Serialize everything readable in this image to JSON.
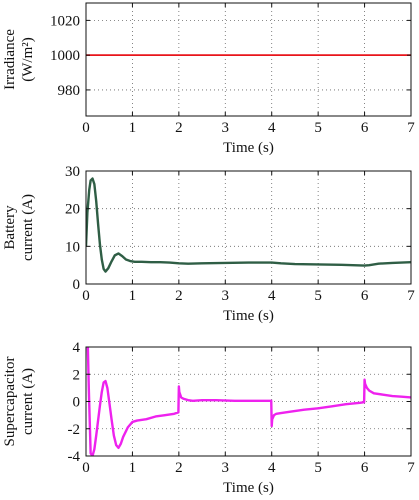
{
  "chart_data": [
    {
      "type": "line",
      "ylabel": "Irradiance (W/m²)",
      "ylabel_lines": [
        "Irradiance",
        "(W/m²)"
      ],
      "xlabel": "Time (s)",
      "xlim": [
        0,
        7
      ],
      "ylim": [
        965,
        1030
      ],
      "xticks": [
        0,
        1,
        2,
        3,
        4,
        5,
        6,
        7
      ],
      "yticks": [
        980,
        1000,
        1020
      ],
      "grid": true,
      "series": [
        {
          "color": "#e8141a",
          "x": [
            0,
            7
          ],
          "y": [
            1000,
            1000
          ]
        }
      ]
    },
    {
      "type": "line",
      "ylabel": "Battery current (A)",
      "ylabel_lines": [
        "Battery",
        "current (A)"
      ],
      "xlabel": "Time (s)",
      "xlim": [
        0,
        7
      ],
      "ylim": [
        0,
        30
      ],
      "xticks": [
        0,
        1,
        2,
        3,
        4,
        5,
        6,
        7
      ],
      "yticks": [
        0,
        10,
        20,
        30
      ],
      "grid": true,
      "series": [
        {
          "color": "#2f5e45",
          "x": [
            0,
            0.03,
            0.07,
            0.1,
            0.14,
            0.18,
            0.22,
            0.26,
            0.3,
            0.34,
            0.38,
            0.42,
            0.48,
            0.55,
            0.62,
            0.7,
            0.78,
            0.86,
            0.95,
            1.05,
            1.2,
            1.4,
            1.6,
            1.8,
            2.0,
            2.2,
            2.5,
            3.0,
            3.5,
            4.0,
            4.2,
            4.5,
            5.0,
            5.5,
            6.0,
            6.1,
            6.3,
            6.6,
            7.0
          ],
          "y": [
            10,
            19,
            25,
            27.5,
            28,
            26.5,
            22,
            16,
            10.5,
            6.5,
            4,
            3.3,
            4.2,
            6,
            7.6,
            8.1,
            7.4,
            6.5,
            6.1,
            5.9,
            5.9,
            5.8,
            5.8,
            5.7,
            5.5,
            5.4,
            5.5,
            5.6,
            5.7,
            5.7,
            5.5,
            5.3,
            5.2,
            5.1,
            4.9,
            5.0,
            5.4,
            5.6,
            5.8
          ]
        }
      ]
    },
    {
      "type": "line",
      "ylabel": "Supercapacitor current (A)",
      "ylabel_lines": [
        "Supercapacitor",
        "current (A)"
      ],
      "xlabel": "Time (s)",
      "xlim": [
        0,
        7
      ],
      "ylim": [
        -4,
        4
      ],
      "xticks": [
        0,
        1,
        2,
        3,
        4,
        5,
        6,
        7
      ],
      "yticks": [
        -4,
        -2,
        0,
        2,
        4
      ],
      "grid": true,
      "series": [
        {
          "color": "#ee22ee",
          "x": [
            0.04,
            0.06,
            0.1,
            0.14,
            0.18,
            0.22,
            0.26,
            0.3,
            0.34,
            0.38,
            0.42,
            0.46,
            0.5,
            0.55,
            0.6,
            0.65,
            0.7,
            0.75,
            0.8,
            0.9,
            1.0,
            1.1,
            1.3,
            1.5,
            1.7,
            1.9,
            1.99,
            2.0,
            2.01,
            2.05,
            2.1,
            2.2,
            2.3,
            2.5,
            2.8,
            3.2,
            3.6,
            3.9,
            3.99,
            4.0,
            4.01,
            4.05,
            4.1,
            4.2,
            4.4,
            4.7,
            5.0,
            5.3,
            5.6,
            5.9,
            5.99,
            6.0,
            6.01,
            6.05,
            6.1,
            6.2,
            6.4,
            6.6,
            6.8,
            7.0
          ],
          "y": [
            4,
            1,
            -3.8,
            -4,
            -3.5,
            -2.5,
            -1.4,
            -0.3,
            0.7,
            1.4,
            1.5,
            1.0,
            0.0,
            -1.3,
            -2.5,
            -3.2,
            -3.4,
            -3.1,
            -2.6,
            -1.9,
            -1.5,
            -1.4,
            -1.3,
            -1.1,
            -1.0,
            -0.9,
            -0.8,
            1.1,
            0.7,
            0.3,
            0.2,
            0.1,
            0.05,
            0.1,
            0.1,
            0.05,
            0.05,
            0.05,
            0.05,
            -1.8,
            -1.3,
            -1.0,
            -0.9,
            -0.85,
            -0.75,
            -0.6,
            -0.5,
            -0.35,
            -0.2,
            -0.1,
            -0.05,
            1.6,
            1.3,
            1.0,
            0.8,
            0.6,
            0.5,
            0.4,
            0.35,
            0.3
          ]
        }
      ]
    }
  ]
}
